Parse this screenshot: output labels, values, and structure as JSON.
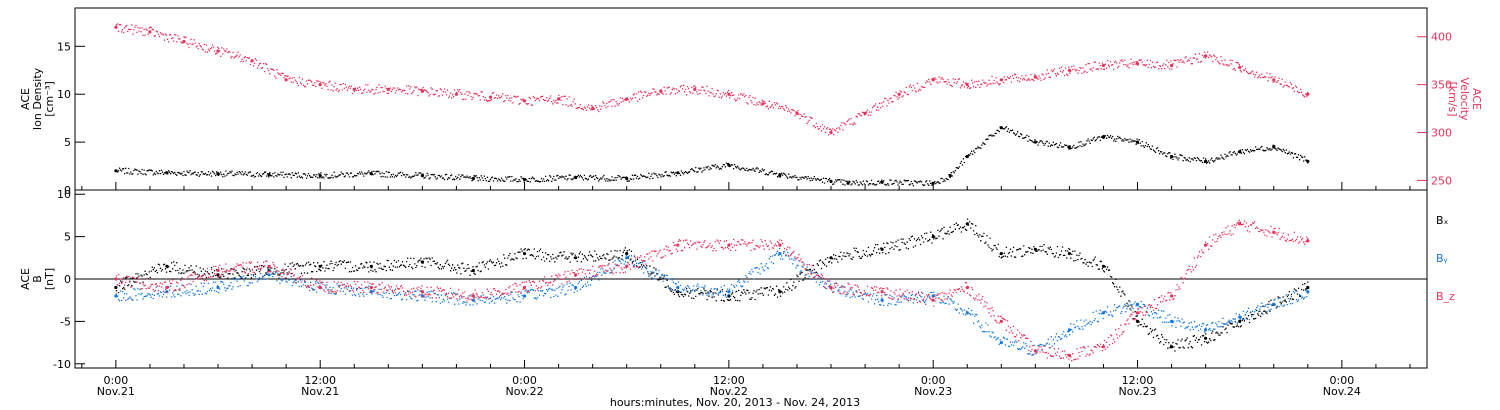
{
  "chart_data": [
    {
      "type": "scatter",
      "panel": "plasma",
      "left_axis": {
        "label_lines": [
          "ACE",
          "Ion Density",
          "[cm⁻³]"
        ],
        "ylim": [
          0,
          19
        ],
        "ticks": [
          0,
          5,
          10,
          15
        ],
        "color": "#000000"
      },
      "right_axis": {
        "label_lines": [
          "ACE",
          "Velocity",
          "[km/s]"
        ],
        "ylim": [
          240,
          430
        ],
        "ticks": [
          250,
          300,
          350,
          400
        ],
        "color": "#e8325c"
      },
      "series": [
        {
          "axis": "left",
          "color": "#000000",
          "x": [
            0,
            3,
            6,
            9,
            12,
            15,
            18,
            21,
            24,
            27,
            30,
            33,
            36,
            39,
            42,
            43,
            45,
            48,
            49,
            50,
            52,
            54,
            56,
            58,
            60,
            62,
            64,
            66,
            68,
            70
          ],
          "y": [
            2.0,
            1.8,
            1.7,
            1.6,
            1.5,
            1.7,
            1.5,
            1.2,
            1.1,
            1.3,
            1.2,
            1.8,
            2.6,
            1.6,
            0.9,
            0.7,
            0.8,
            0.7,
            1.5,
            3.5,
            6.5,
            5.0,
            4.5,
            5.5,
            5.0,
            3.5,
            3.0,
            4.0,
            4.5,
            3.0
          ]
        },
        {
          "axis": "right",
          "color": "#e8325c",
          "x": [
            0,
            2,
            4,
            6,
            8,
            10,
            12,
            14,
            16,
            18,
            20,
            22,
            24,
            26,
            28,
            30,
            32,
            34,
            36,
            38,
            40,
            42,
            44,
            46,
            48,
            50,
            52,
            54,
            56,
            58,
            60,
            62,
            64,
            66,
            68,
            70
          ],
          "y": [
            410,
            405,
            395,
            385,
            375,
            355,
            350,
            345,
            345,
            343,
            340,
            337,
            333,
            335,
            325,
            335,
            343,
            345,
            340,
            330,
            320,
            300,
            320,
            340,
            355,
            350,
            355,
            358,
            365,
            370,
            372,
            370,
            380,
            368,
            355,
            340
          ]
        }
      ]
    },
    {
      "type": "scatter",
      "panel": "magnetic_field",
      "left_axis": {
        "label_lines": [
          "ACE",
          "B",
          "[nT]"
        ],
        "ylim": [
          -10.5,
          10.5
        ],
        "ticks": [
          -10,
          -5,
          0,
          5,
          10
        ],
        "color": "#000000"
      },
      "legend_position": "right",
      "series": [
        {
          "name": "Bₓ",
          "color": "#000000",
          "x": [
            0,
            3,
            6,
            9,
            12,
            15,
            18,
            21,
            24,
            27,
            30,
            33,
            36,
            39,
            42,
            45,
            48,
            50,
            52,
            54,
            56,
            58,
            60,
            62,
            64,
            66,
            68,
            70
          ],
          "y": [
            -1.0,
            1.5,
            0.5,
            1.0,
            1.5,
            1.5,
            2.0,
            1.0,
            3.0,
            2.5,
            3.0,
            -1.5,
            -2.0,
            -1.5,
            2.5,
            3.5,
            5.0,
            6.5,
            3.0,
            3.5,
            3.0,
            1.5,
            -5.0,
            -8.0,
            -7.0,
            -5.0,
            -3.0,
            -1.0
          ]
        },
        {
          "name": "Bᵧ",
          "color": "#1479e0",
          "x": [
            0,
            3,
            6,
            9,
            12,
            15,
            18,
            21,
            24,
            27,
            30,
            33,
            36,
            39,
            42,
            45,
            48,
            50,
            52,
            54,
            56,
            58,
            60,
            62,
            64,
            66,
            68,
            70
          ],
          "y": [
            -2.0,
            -1.5,
            -1.0,
            0.5,
            -1.0,
            -1.5,
            -2.0,
            -2.5,
            -2.0,
            -1.0,
            2.5,
            -1.0,
            -1.5,
            3.0,
            -1.0,
            -2.5,
            -2.0,
            -4.0,
            -7.5,
            -8.5,
            -6.0,
            -4.0,
            -3.0,
            -5.0,
            -6.0,
            -4.5,
            -3.0,
            -1.5
          ]
        },
        {
          "name": "B_z",
          "color": "#e8325c",
          "x": [
            0,
            3,
            6,
            9,
            12,
            15,
            18,
            21,
            24,
            27,
            30,
            33,
            36,
            39,
            42,
            45,
            48,
            50,
            52,
            54,
            56,
            58,
            60,
            62,
            64,
            66,
            68,
            70
          ],
          "y": [
            0.0,
            -1.0,
            1.0,
            1.5,
            -1.0,
            -1.0,
            -1.5,
            -2.0,
            -1.0,
            0.5,
            1.5,
            4.0,
            4.0,
            4.0,
            -1.0,
            -1.5,
            -2.5,
            -1.0,
            -5.0,
            -8.5,
            -9.0,
            -8.0,
            -4.0,
            -2.0,
            4.0,
            6.5,
            5.5,
            4.5
          ]
        }
      ]
    }
  ],
  "x_axis": {
    "xlim": [
      -2.4,
      77.0
    ],
    "tick_hours": [
      0,
      12,
      24,
      36,
      48,
      60,
      72
    ],
    "tick_labels_top": [
      "0:00",
      "12:00",
      "0:00",
      "12:00",
      "0:00",
      "12:00",
      "0:00"
    ],
    "tick_labels_bottom": [
      "Nov.21",
      "Nov.21",
      "Nov.22",
      "Nov.22",
      "Nov.23",
      "Nov.23",
      "Nov.24"
    ],
    "title": "hours:minutes, Nov. 20, 2013 - Nov. 24, 2013"
  }
}
